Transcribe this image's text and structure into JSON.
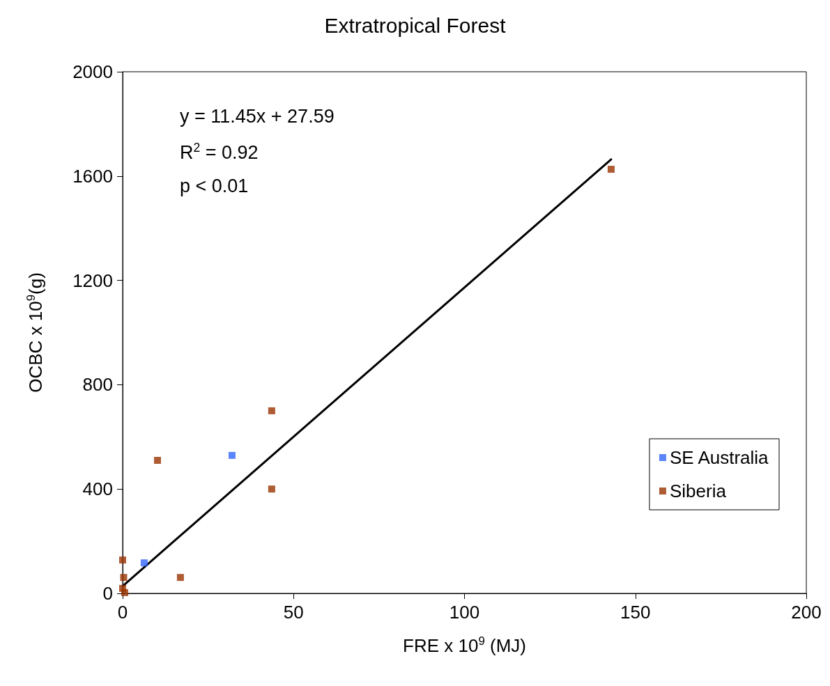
{
  "chart_data": {
    "type": "scatter",
    "title": "Extratropical Forest",
    "xlabel": "FRE x 10$^{9}$ (MJ)",
    "ylabel": "OCBC x 10$^{9}$(g)",
    "annotations": [
      "y = 11.45x + 27.59",
      "R$^{2}$ = 0.92",
      "p < 0.01"
    ],
    "xlim": [
      0,
      200
    ],
    "xticks": [
      0,
      50,
      100,
      150,
      200
    ],
    "ylim": [
      0,
      2000
    ],
    "yticks": [
      0,
      400,
      800,
      1200,
      1600,
      2000
    ],
    "grid": false,
    "legend": "right",
    "marker": "square",
    "series": [
      {
        "name": "SE Australia",
        "color": "#3366ff",
        "x": [
          6.3,
          32
        ],
        "values": [
          117,
          529
        ]
      },
      {
        "name": "Siberia",
        "color": "#993300",
        "x": [
          142.9,
          43.6,
          43.6,
          10.2,
          16.9,
          0,
          0.3,
          0,
          0.6
        ],
        "values": [
          1626,
          700,
          400,
          510,
          61,
          128,
          61,
          19,
          3
        ]
      },
      {
        "type": "line",
        "color": "#000000",
        "marker": "none",
        "x": [
          0,
          142.9
        ],
        "values": [
          28,
          1664
        ]
      }
    ]
  }
}
